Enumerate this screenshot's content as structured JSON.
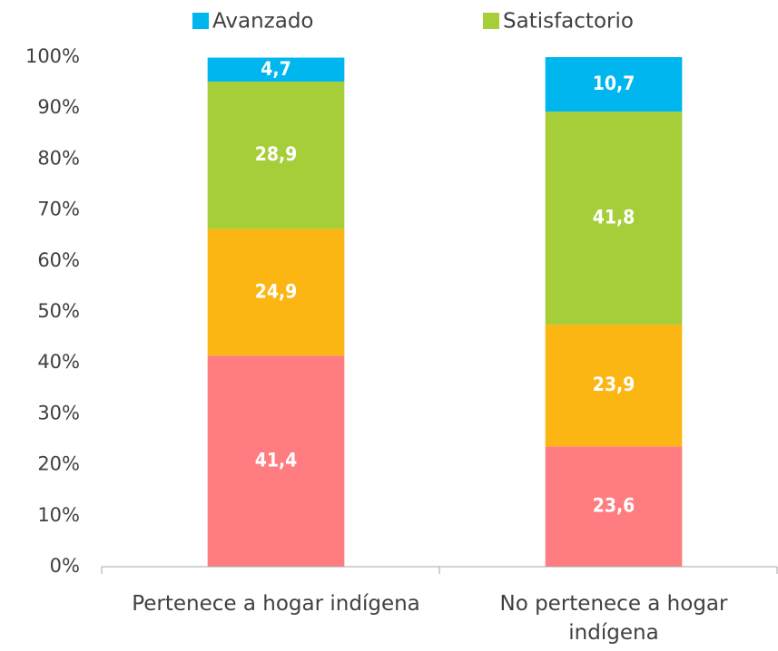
{
  "chart_data": {
    "type": "stacked_bar",
    "categories": [
      "Pertenece a hogar indígena",
      "No pertenece a hogar indígena"
    ],
    "series": [
      {
        "color": "#ff7c80",
        "values": [
          41.4,
          23.6
        ],
        "value_labels": [
          "41,4",
          "23,6"
        ]
      },
      {
        "color": "#fbb614",
        "values": [
          24.9,
          23.9
        ],
        "value_labels": [
          "24,9",
          "23,9"
        ]
      },
      {
        "name": "Satisfactorio",
        "color": "#a6ce39",
        "values": [
          28.9,
          41.8
        ],
        "value_labels": [
          "28,9",
          "41,8"
        ]
      },
      {
        "name": "Avanzado",
        "color": "#00b6ef",
        "values": [
          4.7,
          10.7
        ],
        "value_labels": [
          "4,7",
          "10,7"
        ]
      }
    ],
    "ylim": [
      0,
      100
    ],
    "yticks": [
      {
        "value": 0,
        "label": "0%"
      },
      {
        "value": 10,
        "label": "10%"
      },
      {
        "value": 20,
        "label": "20%"
      },
      {
        "value": 30,
        "label": "30%"
      },
      {
        "value": 40,
        "label": "40%"
      },
      {
        "value": 50,
        "label": "50%"
      },
      {
        "value": 60,
        "label": "60%"
      },
      {
        "value": 70,
        "label": "70%"
      },
      {
        "value": 80,
        "label": "80%"
      },
      {
        "value": 90,
        "label": "90%"
      },
      {
        "value": 100,
        "label": "100%"
      }
    ],
    "grid": false,
    "legend": "top"
  }
}
